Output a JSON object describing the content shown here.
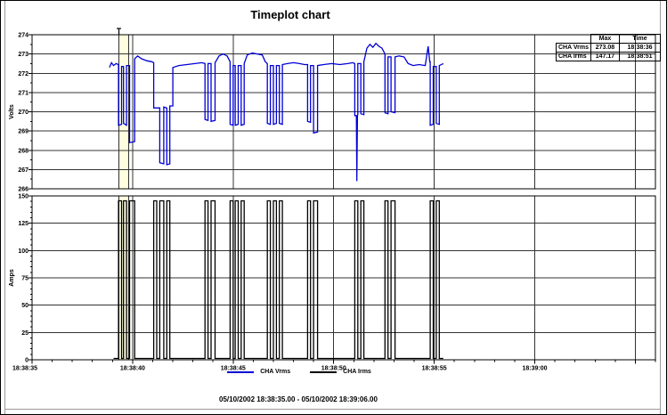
{
  "window": {
    "title": "Timeplot chart"
  },
  "legend": {
    "items": [
      {
        "label": "CHA Vrms",
        "color": "#0000D6"
      },
      {
        "label": "CHA Irms",
        "color": "#000000"
      }
    ]
  },
  "footer": {
    "range_text": "05/10/2002 18:38:35.00 - 05/10/2002 18:39:06.00"
  },
  "stats_table": {
    "headers": [
      "",
      "Max",
      "Time"
    ],
    "rows": [
      {
        "label": "CHA Vrms",
        "max": "273.08",
        "time": "18:38:36"
      },
      {
        "label": "CHA Irms",
        "max": "147.17",
        "time": "18:38:51"
      }
    ]
  },
  "chart_data": [
    {
      "type": "line",
      "name": "volts-plot",
      "ylabel": "Volts",
      "ylim": [
        266,
        274
      ],
      "y_tick_labels": [
        "274",
        "273",
        "272",
        "271",
        "270",
        "269",
        "268",
        "267",
        "266"
      ],
      "y_major_step": 1,
      "y_minor_step": 0.5,
      "xlim_seconds": [
        0,
        31
      ],
      "x_major_ticks": [
        {
          "t": 0,
          "label": "18:38:35"
        },
        {
          "t": 5,
          "label": "18:38:40"
        },
        {
          "t": 10,
          "label": "18:38:45"
        },
        {
          "t": 15,
          "label": "18:38:50"
        },
        {
          "t": 20,
          "label": "18:38:55"
        },
        {
          "t": 25,
          "label": "18:39:00"
        },
        {
          "t": 30,
          "label": ""
        }
      ],
      "x_minor_step": 1,
      "grid": true,
      "highlight_band": {
        "t_start": 4.32,
        "t_end": 4.8,
        "fill": "#FFFFE0"
      },
      "series": [
        {
          "name": "CHA Vrms",
          "color": "#0000D6",
          "points": [
            [
              3.85,
              272.3
            ],
            [
              3.95,
              272.55
            ],
            [
              4.05,
              272.4
            ],
            [
              4.18,
              272.5
            ],
            [
              4.3,
              272.45
            ],
            [
              4.3,
              269.3
            ],
            [
              4.45,
              269.35
            ],
            [
              4.45,
              272.35
            ],
            [
              4.55,
              272.35
            ],
            [
              4.55,
              269.4
            ],
            [
              4.7,
              269.3
            ],
            [
              4.7,
              272.4
            ],
            [
              4.85,
              272.4
            ],
            [
              4.85,
              268.4
            ],
            [
              5.1,
              268.45
            ],
            [
              5.1,
              272.75
            ],
            [
              5.25,
              272.9
            ],
            [
              5.45,
              272.75
            ],
            [
              5.7,
              272.65
            ],
            [
              5.95,
              272.6
            ],
            [
              6.05,
              272.55
            ],
            [
              6.05,
              270.2
            ],
            [
              6.35,
              270.2
            ],
            [
              6.35,
              267.35
            ],
            [
              6.55,
              267.3
            ],
            [
              6.55,
              270.25
            ],
            [
              6.7,
              270.2
            ],
            [
              6.7,
              267.25
            ],
            [
              6.85,
              267.3
            ],
            [
              6.85,
              270.3
            ],
            [
              7.0,
              270.3
            ],
            [
              7.0,
              272.3
            ],
            [
              7.3,
              272.4
            ],
            [
              7.7,
              272.45
            ],
            [
              8.1,
              272.5
            ],
            [
              8.45,
              272.55
            ],
            [
              8.6,
              272.5
            ],
            [
              8.6,
              269.6
            ],
            [
              8.75,
              269.55
            ],
            [
              8.75,
              272.5
            ],
            [
              8.9,
              272.5
            ],
            [
              8.9,
              269.5
            ],
            [
              9.1,
              269.55
            ],
            [
              9.1,
              272.55
            ],
            [
              9.3,
              272.9
            ],
            [
              9.5,
              273.0
            ],
            [
              9.7,
              272.9
            ],
            [
              9.85,
              272.6
            ],
            [
              9.85,
              269.35
            ],
            [
              10.0,
              269.3
            ],
            [
              10.0,
              272.4
            ],
            [
              10.1,
              272.4
            ],
            [
              10.1,
              269.3
            ],
            [
              10.25,
              269.35
            ],
            [
              10.25,
              272.4
            ],
            [
              10.4,
              272.4
            ],
            [
              10.4,
              269.3
            ],
            [
              10.55,
              269.35
            ],
            [
              10.55,
              272.5
            ],
            [
              10.7,
              272.95
            ],
            [
              10.95,
              273.05
            ],
            [
              11.2,
              273.0
            ],
            [
              11.45,
              272.95
            ],
            [
              11.6,
              272.6
            ],
            [
              11.7,
              272.5
            ],
            [
              11.7,
              269.4
            ],
            [
              11.85,
              269.35
            ],
            [
              11.85,
              272.4
            ],
            [
              12.0,
              272.4
            ],
            [
              12.0,
              269.35
            ],
            [
              12.15,
              269.4
            ],
            [
              12.15,
              272.4
            ],
            [
              12.3,
              272.4
            ],
            [
              12.3,
              269.4
            ],
            [
              12.45,
              269.35
            ],
            [
              12.45,
              272.45
            ],
            [
              12.7,
              272.5
            ],
            [
              13.0,
              272.55
            ],
            [
              13.3,
              272.5
            ],
            [
              13.55,
              272.45
            ],
            [
              13.7,
              272.45
            ],
            [
              13.7,
              269.5
            ],
            [
              13.85,
              269.45
            ],
            [
              13.85,
              272.4
            ],
            [
              14.0,
              272.4
            ],
            [
              14.0,
              268.9
            ],
            [
              14.2,
              268.95
            ],
            [
              14.2,
              272.4
            ],
            [
              14.5,
              272.45
            ],
            [
              14.9,
              272.5
            ],
            [
              15.3,
              272.45
            ],
            [
              15.7,
              272.5
            ],
            [
              15.95,
              272.55
            ],
            [
              16.05,
              272.5
            ],
            [
              16.05,
              269.8
            ],
            [
              16.13,
              269.8
            ],
            [
              16.15,
              266.4
            ],
            [
              16.18,
              269.8
            ],
            [
              16.2,
              269.85
            ],
            [
              16.2,
              272.5
            ],
            [
              16.35,
              272.5
            ],
            [
              16.35,
              269.9
            ],
            [
              16.5,
              269.85
            ],
            [
              16.5,
              272.6
            ],
            [
              16.65,
              273.3
            ],
            [
              16.8,
              273.5
            ],
            [
              16.95,
              273.35
            ],
            [
              17.1,
              273.55
            ],
            [
              17.25,
              273.4
            ],
            [
              17.4,
              273.3
            ],
            [
              17.55,
              273.0
            ],
            [
              17.55,
              269.95
            ],
            [
              17.7,
              269.9
            ],
            [
              17.7,
              272.85
            ],
            [
              17.85,
              272.85
            ],
            [
              17.85,
              270.0
            ],
            [
              18.05,
              269.95
            ],
            [
              18.05,
              272.85
            ],
            [
              18.25,
              272.9
            ],
            [
              18.5,
              272.85
            ],
            [
              18.7,
              272.5
            ],
            [
              18.95,
              272.4
            ],
            [
              19.25,
              272.45
            ],
            [
              19.55,
              272.4
            ],
            [
              19.7,
              273.4
            ],
            [
              19.78,
              272.6
            ],
            [
              19.8,
              272.6
            ],
            [
              19.8,
              269.3
            ],
            [
              19.95,
              269.35
            ],
            [
              19.95,
              272.35
            ],
            [
              20.1,
              272.35
            ],
            [
              20.1,
              269.4
            ],
            [
              20.25,
              269.35
            ],
            [
              20.25,
              272.4
            ],
            [
              20.45,
              272.5
            ]
          ]
        }
      ]
    },
    {
      "type": "line",
      "name": "amps-plot",
      "ylabel": "Amps",
      "ylim": [
        0,
        150
      ],
      "y_tick_labels": [
        "150",
        "125",
        "100",
        "75",
        "50",
        "25",
        "0"
      ],
      "y_major_step": 25,
      "y_minor_step": 5,
      "xlim_seconds": [
        0,
        31
      ],
      "x_minor_step": 1,
      "grid": true,
      "series": [
        {
          "name": "CHA Irms",
          "color": "#000000",
          "baseline": 1.2,
          "level": 145.5,
          "t_start": 4.05,
          "t_end": 20.45,
          "pulses": [
            [
              4.3,
              4.45
            ],
            [
              4.55,
              4.7
            ],
            [
              4.85,
              5.1
            ],
            [
              6.05,
              6.2
            ],
            [
              6.35,
              6.55
            ],
            [
              6.7,
              6.85
            ],
            [
              8.6,
              8.75
            ],
            [
              8.9,
              9.1
            ],
            [
              9.85,
              10.0
            ],
            [
              10.1,
              10.25
            ],
            [
              10.4,
              10.55
            ],
            [
              11.7,
              11.85
            ],
            [
              12.0,
              12.15
            ],
            [
              12.3,
              12.45
            ],
            [
              13.7,
              13.85
            ],
            [
              14.0,
              14.2
            ],
            [
              16.05,
              16.2
            ],
            [
              16.35,
              16.5
            ],
            [
              17.55,
              17.7
            ],
            [
              17.85,
              18.05
            ],
            [
              19.8,
              19.95
            ],
            [
              20.1,
              20.25
            ]
          ]
        }
      ]
    }
  ]
}
